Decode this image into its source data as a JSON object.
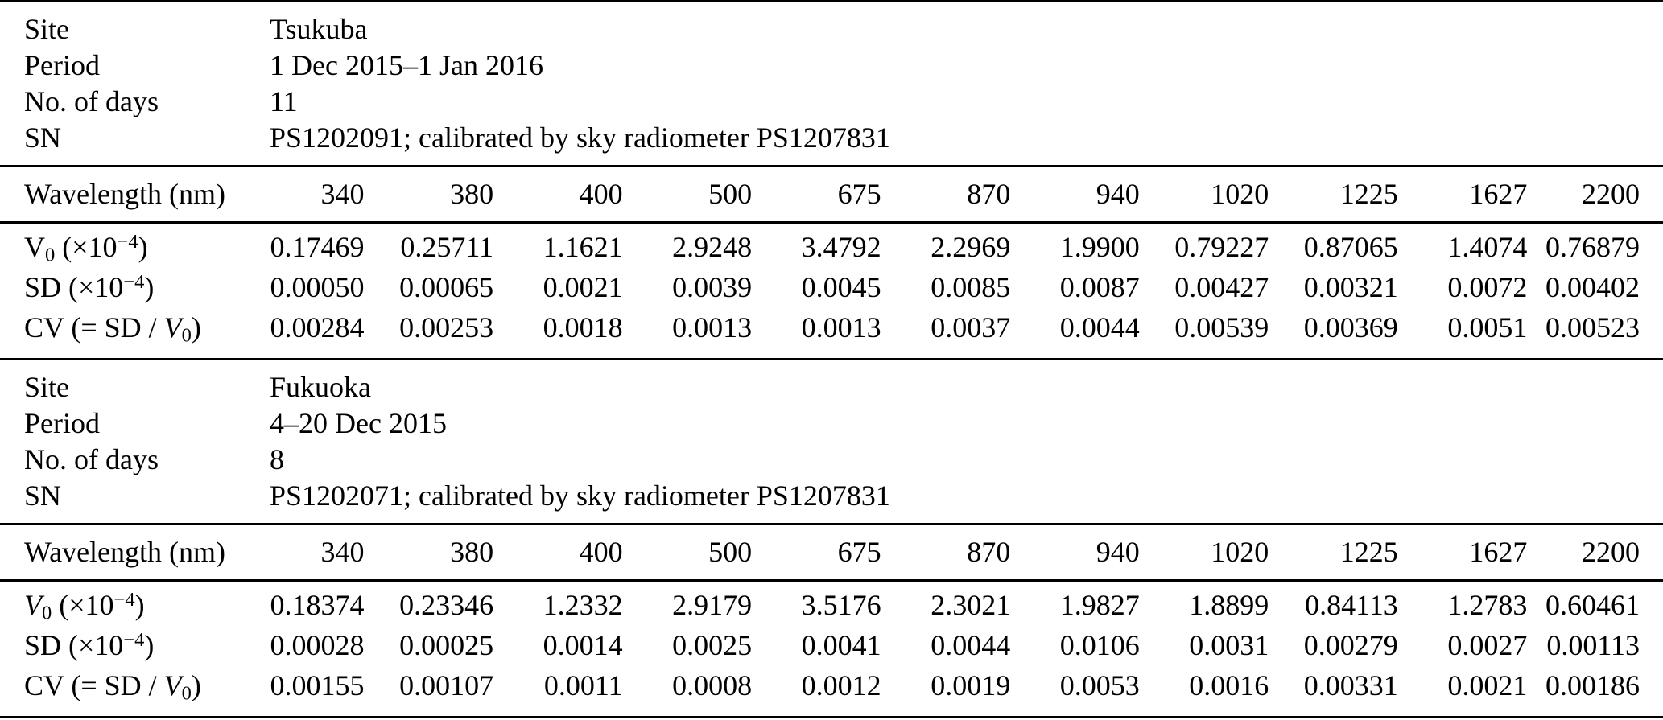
{
  "table": {
    "sections": [
      {
        "meta": [
          {
            "label": "Site",
            "value": "Tsukuba"
          },
          {
            "label": "Period",
            "value": "1 Dec 2015–1 Jan 2016"
          },
          {
            "label": "No. of days",
            "value": "11"
          },
          {
            "label": "SN",
            "value": "PS1202091; calibrated by sky radiometer PS1207831"
          }
        ],
        "wavelength_label": "Wavelength (nm)",
        "wavelengths": [
          "340",
          "380",
          "400",
          "500",
          "675",
          "870",
          "940",
          "1020",
          "1225",
          "1627",
          "2200"
        ],
        "rows": [
          {
            "name": "v0",
            "label_segments": [
              {
                "t": "n",
                "v": "V"
              },
              {
                "t": "sub",
                "v": "0"
              },
              {
                "t": "n",
                "v": " (×10"
              },
              {
                "t": "sup",
                "v": "−4"
              },
              {
                "t": "n",
                "v": ")"
              }
            ],
            "values": [
              "0.17469",
              "0.25711",
              "1.1621",
              "2.9248",
              "3.4792",
              "2.2969",
              "1.9900",
              "0.79227",
              "0.87065",
              "1.4074",
              "0.76879"
            ]
          },
          {
            "name": "sd",
            "label_segments": [
              {
                "t": "n",
                "v": "SD (×10"
              },
              {
                "t": "sup",
                "v": "−4"
              },
              {
                "t": "n",
                "v": ")"
              }
            ],
            "values": [
              "0.00050",
              "0.00065",
              "0.0021",
              "0.0039",
              "0.0045",
              "0.0085",
              "0.0087",
              "0.00427",
              "0.00321",
              "0.0072",
              "0.00402"
            ]
          },
          {
            "name": "cv",
            "label_segments": [
              {
                "t": "n",
                "v": "CV (= SD / "
              },
              {
                "t": "i",
                "v": "V"
              },
              {
                "t": "sub",
                "v": "0"
              },
              {
                "t": "n",
                "v": ")"
              }
            ],
            "values": [
              "0.00284",
              "0.00253",
              "0.0018",
              "0.0013",
              "0.0013",
              "0.0037",
              "0.0044",
              "0.00539",
              "0.00369",
              "0.0051",
              "0.00523"
            ]
          }
        ]
      },
      {
        "meta": [
          {
            "label": "Site",
            "value": "Fukuoka"
          },
          {
            "label": "Period",
            "value": "4–20 Dec 2015"
          },
          {
            "label": "No. of days",
            "value": "8"
          },
          {
            "label": "SN",
            "value": "PS1202071; calibrated by sky radiometer PS1207831"
          }
        ],
        "wavelength_label": "Wavelength (nm)",
        "wavelengths": [
          "340",
          "380",
          "400",
          "500",
          "675",
          "870",
          "940",
          "1020",
          "1225",
          "1627",
          "2200"
        ],
        "rows": [
          {
            "name": "v0",
            "label_segments": [
              {
                "t": "i",
                "v": "V"
              },
              {
                "t": "sub",
                "v": "0"
              },
              {
                "t": "n",
                "v": " (×10"
              },
              {
                "t": "sup",
                "v": "−4"
              },
              {
                "t": "n",
                "v": ")"
              }
            ],
            "values": [
              "0.18374",
              "0.23346",
              "1.2332",
              "2.9179",
              "3.5176",
              "2.3021",
              "1.9827",
              "1.8899",
              "0.84113",
              "1.2783",
              "0.60461"
            ]
          },
          {
            "name": "sd",
            "label_segments": [
              {
                "t": "n",
                "v": "SD (×10"
              },
              {
                "t": "sup",
                "v": "−4"
              },
              {
                "t": "n",
                "v": ")"
              }
            ],
            "values": [
              "0.00028",
              "0.00025",
              "0.0014",
              "0.0025",
              "0.0041",
              "0.0044",
              "0.0106",
              "0.0031",
              "0.00279",
              "0.0027",
              "0.00113"
            ]
          },
          {
            "name": "cv",
            "label_segments": [
              {
                "t": "n",
                "v": "CV (= SD / "
              },
              {
                "t": "i",
                "v": "V"
              },
              {
                "t": "sub",
                "v": "0"
              },
              {
                "t": "n",
                "v": ")"
              }
            ],
            "values": [
              "0.00155",
              "0.00107",
              "0.0011",
              "0.0008",
              "0.0012",
              "0.0019",
              "0.0053",
              "0.0016",
              "0.00331",
              "0.0021",
              "0.00186"
            ]
          }
        ]
      }
    ]
  }
}
